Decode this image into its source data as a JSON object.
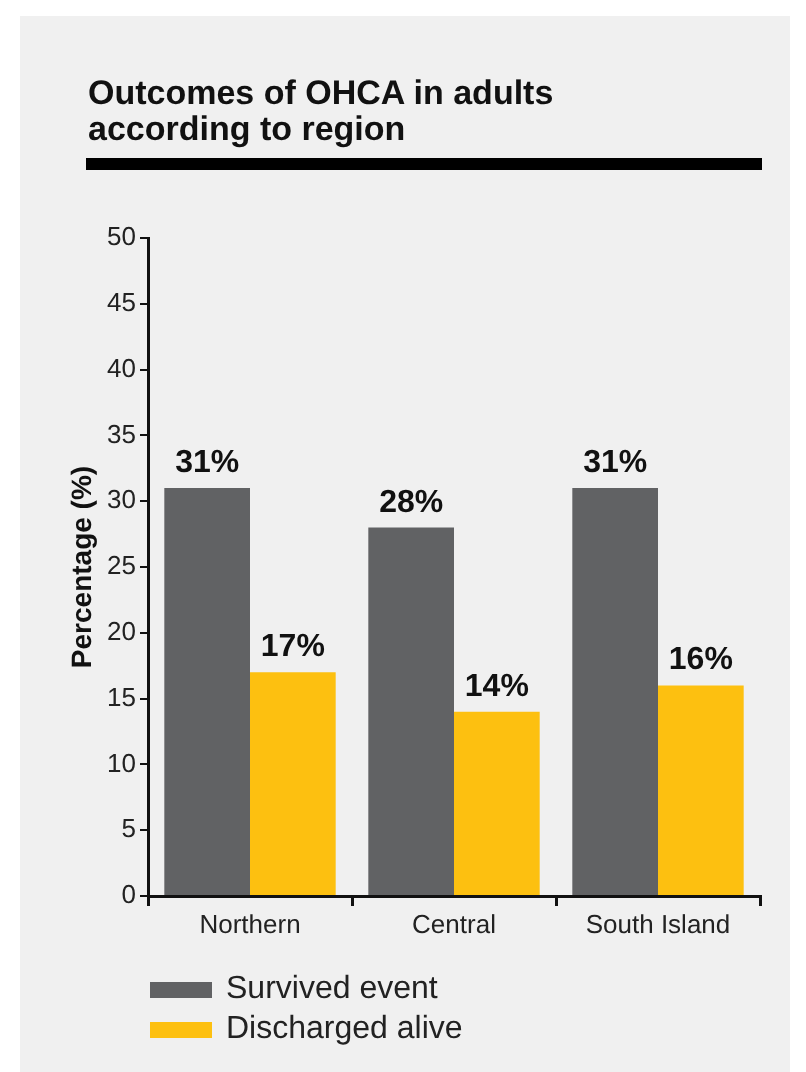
{
  "chart_data": {
    "type": "bar",
    "title": "Outcomes of OHCA in adults according to region",
    "ylabel": "Percentage (%)",
    "categories": [
      "Northern",
      "Central",
      "South Island"
    ],
    "series": [
      {
        "name": "Survived event",
        "color": "#616264",
        "values": [
          31,
          28,
          31
        ],
        "value_labels": [
          "31%",
          "28%",
          "31%"
        ]
      },
      {
        "name": "Discharged alive",
        "color": "#fdc010",
        "values": [
          17,
          14,
          16
        ],
        "value_labels": [
          "17%",
          "14%",
          "16%"
        ]
      }
    ],
    "ylim": [
      0,
      50
    ],
    "yticks": [
      0,
      5,
      10,
      15,
      20,
      25,
      30,
      35,
      40,
      45,
      50
    ],
    "legend": "bottom"
  }
}
